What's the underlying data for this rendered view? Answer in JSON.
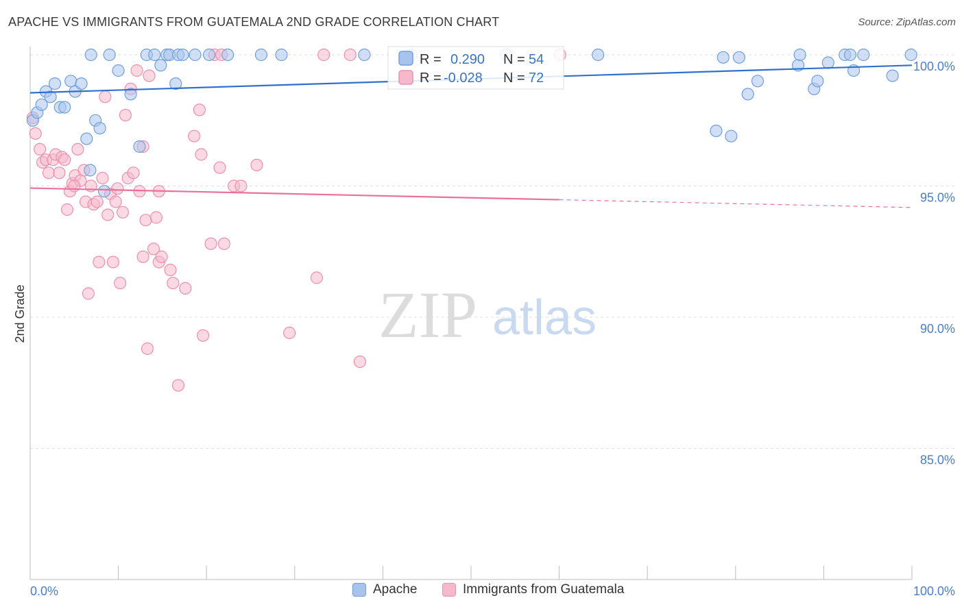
{
  "title": "APACHE VS IMMIGRANTS FROM GUATEMALA 2ND GRADE CORRELATION CHART",
  "source": "Source: ZipAtlas.com",
  "watermark": {
    "zip": "ZIP",
    "atlas": "atlas"
  },
  "colors": {
    "blue_fill": "#a9c4ec",
    "blue_stroke": "#6f9fdd",
    "blue_line": "#2f6fce",
    "pink_fill": "#f6b9cc",
    "pink_stroke": "#ec8fae",
    "pink_line": "#e8709a",
    "tick_text": "#4a7cc9",
    "grid": "#dddddd"
  },
  "stats_legend": {
    "rows": [
      {
        "r_label": "R =",
        "r_value": "0.290",
        "n_label": "N =",
        "n_value": "54",
        "series": "Apache"
      },
      {
        "r_label": "R =",
        "r_value": "-0.028",
        "n_label": "N =",
        "n_value": "72",
        "series": "Immigrants from Guatemala"
      }
    ]
  },
  "chart_data": {
    "type": "scatter",
    "title": "APACHE VS IMMIGRANTS FROM GUATEMALA 2ND GRADE CORRELATION CHART",
    "xlabel": "",
    "ylabel": "2nd Grade",
    "xlim": [
      0,
      100
    ],
    "ylim": [
      80.5,
      100.8
    ],
    "x_tick_labels": [
      {
        "value": 0,
        "label": "0.0%"
      },
      {
        "value": 100,
        "label": "100.0%"
      }
    ],
    "x_minor_ticks": [
      0,
      10,
      20,
      30,
      40,
      50,
      60,
      70,
      80,
      90,
      100
    ],
    "y_ticks": [
      {
        "value": 100,
        "label": "100.0%"
      },
      {
        "value": 95,
        "label": "95.0%"
      },
      {
        "value": 90,
        "label": "90.0%"
      },
      {
        "value": 85,
        "label": "85.0%"
      }
    ],
    "series": [
      {
        "name": "Apache",
        "color": "blue",
        "trend": {
          "x": [
            0,
            100
          ],
          "y": [
            98.55,
            99.6
          ],
          "solid_to": 100
        },
        "points": [
          [
            0.3,
            97.5
          ],
          [
            0.8,
            97.8
          ],
          [
            1.3,
            98.1
          ],
          [
            1.8,
            98.6
          ],
          [
            2.3,
            98.4
          ],
          [
            2.8,
            98.9
          ],
          [
            3.4,
            98.0
          ],
          [
            3.9,
            98.0
          ],
          [
            4.6,
            99.0
          ],
          [
            5.1,
            98.6
          ],
          [
            5.8,
            98.9
          ],
          [
            6.4,
            96.8
          ],
          [
            6.8,
            95.6
          ],
          [
            7.4,
            97.5
          ],
          [
            7.9,
            97.2
          ],
          [
            8.4,
            94.8
          ],
          [
            6.9,
            100.0
          ],
          [
            9.0,
            100.0
          ],
          [
            10.0,
            99.4
          ],
          [
            11.4,
            98.5
          ],
          [
            12.4,
            96.5
          ],
          [
            13.2,
            100.0
          ],
          [
            14.1,
            100.0
          ],
          [
            14.8,
            99.6
          ],
          [
            15.5,
            100.0
          ],
          [
            15.8,
            100.0
          ],
          [
            16.5,
            98.9
          ],
          [
            16.8,
            100.0
          ],
          [
            17.3,
            100.0
          ],
          [
            18.7,
            100.0
          ],
          [
            20.3,
            100.0
          ],
          [
            22.4,
            100.0
          ],
          [
            26.2,
            100.0
          ],
          [
            28.5,
            100.0
          ],
          [
            37.9,
            100.0
          ],
          [
            43.2,
            100.0
          ],
          [
            54.0,
            100.0
          ],
          [
            64.4,
            100.0
          ],
          [
            77.8,
            97.1
          ],
          [
            78.6,
            99.9
          ],
          [
            79.5,
            96.9
          ],
          [
            80.4,
            99.9
          ],
          [
            81.4,
            98.5
          ],
          [
            82.5,
            99.0
          ],
          [
            87.1,
            99.6
          ],
          [
            87.3,
            100.0
          ],
          [
            88.9,
            98.7
          ],
          [
            89.3,
            99.0
          ],
          [
            90.5,
            99.7
          ],
          [
            92.4,
            100.0
          ],
          [
            93.0,
            100.0
          ],
          [
            93.4,
            99.4
          ],
          [
            94.5,
            100.0
          ],
          [
            97.8,
            99.2
          ],
          [
            99.9,
            100.0
          ]
        ]
      },
      {
        "name": "Immigrants from Guatemala",
        "color": "pink",
        "trend": {
          "x": [
            0,
            100
          ],
          "y": [
            94.92,
            94.18
          ],
          "solid_to": 60
        },
        "points": [
          [
            0.3,
            97.6
          ],
          [
            0.6,
            97.0
          ],
          [
            1.1,
            96.4
          ],
          [
            1.4,
            95.9
          ],
          [
            1.8,
            96.0
          ],
          [
            2.1,
            95.5
          ],
          [
            2.6,
            96.0
          ],
          [
            2.9,
            96.2
          ],
          [
            3.3,
            95.5
          ],
          [
            3.6,
            96.1
          ],
          [
            3.9,
            96.0
          ],
          [
            4.2,
            94.1
          ],
          [
            4.5,
            94.8
          ],
          [
            4.8,
            95.1
          ],
          [
            5.1,
            95.4
          ],
          [
            5.4,
            96.4
          ],
          [
            5.7,
            95.2
          ],
          [
            6.1,
            95.6
          ],
          [
            6.3,
            94.4
          ],
          [
            6.6,
            90.9
          ],
          [
            6.9,
            95.0
          ],
          [
            7.2,
            94.3
          ],
          [
            7.6,
            94.4
          ],
          [
            7.8,
            92.1
          ],
          [
            8.2,
            95.3
          ],
          [
            8.5,
            98.4
          ],
          [
            8.8,
            93.9
          ],
          [
            9.1,
            94.7
          ],
          [
            9.4,
            92.1
          ],
          [
            9.7,
            94.4
          ],
          [
            9.9,
            94.9
          ],
          [
            10.2,
            91.3
          ],
          [
            10.5,
            94.0
          ],
          [
            10.8,
            97.7
          ],
          [
            11.1,
            95.3
          ],
          [
            11.4,
            98.7
          ],
          [
            11.7,
            95.5
          ],
          [
            12.1,
            99.4
          ],
          [
            12.4,
            94.8
          ],
          [
            12.8,
            92.3
          ],
          [
            13.1,
            93.7
          ],
          [
            13.3,
            88.8
          ],
          [
            13.5,
            99.2
          ],
          [
            14.0,
            92.6
          ],
          [
            14.3,
            93.8
          ],
          [
            14.6,
            92.1
          ],
          [
            14.9,
            92.3
          ],
          [
            14.6,
            94.8
          ],
          [
            15.9,
            91.8
          ],
          [
            16.2,
            91.3
          ],
          [
            16.8,
            87.4
          ],
          [
            17.6,
            91.1
          ],
          [
            18.6,
            96.9
          ],
          [
            19.2,
            97.9
          ],
          [
            19.4,
            96.2
          ],
          [
            19.6,
            89.3
          ],
          [
            20.5,
            92.8
          ],
          [
            20.9,
            100.0
          ],
          [
            21.5,
            95.7
          ],
          [
            21.7,
            100.0
          ],
          [
            22.0,
            92.8
          ],
          [
            23.1,
            95.0
          ],
          [
            23.9,
            95.0
          ],
          [
            25.7,
            95.8
          ],
          [
            29.4,
            89.4
          ],
          [
            32.5,
            91.5
          ],
          [
            33.3,
            100.0
          ],
          [
            36.3,
            100.0
          ],
          [
            37.4,
            88.3
          ],
          [
            60.1,
            100.0
          ],
          [
            5.0,
            95.0
          ],
          [
            12.8,
            96.5
          ]
        ]
      }
    ]
  },
  "bottom_legend": [
    {
      "label": "Apache",
      "color": "blue"
    },
    {
      "label": "Immigrants from Guatemala",
      "color": "pink"
    }
  ]
}
